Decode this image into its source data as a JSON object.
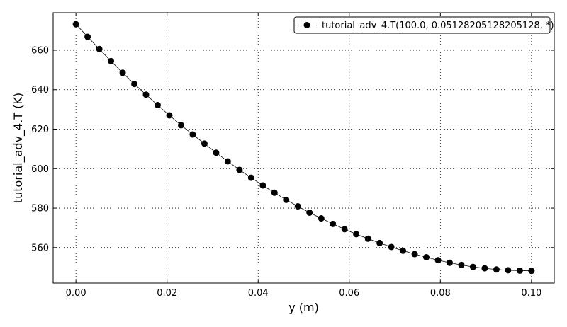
{
  "chart_data": {
    "type": "line",
    "xlabel": "y (m)",
    "ylabel": "tutorial_adv_4.T (K)",
    "xlim": [
      -0.005,
      0.105
    ],
    "ylim": [
      542,
      679
    ],
    "grid": true,
    "grid_style": "dotted",
    "legend_position": "top-right",
    "x_ticks": [
      0.0,
      0.02,
      0.04,
      0.06,
      0.08,
      0.1
    ],
    "x_tick_labels": [
      "0.00",
      "0.02",
      "0.04",
      "0.06",
      "0.08",
      "0.10"
    ],
    "y_ticks": [
      560,
      580,
      600,
      620,
      640,
      660
    ],
    "y_tick_labels": [
      "560",
      "580",
      "600",
      "620",
      "640",
      "660"
    ],
    "series": [
      {
        "name": "tutorial_adv_4.T(100.0, 0.05128205128205128, *)",
        "color": "#000000",
        "marker": "circle",
        "x": [
          0.0,
          0.00256,
          0.00513,
          0.00769,
          0.01026,
          0.01282,
          0.01538,
          0.01795,
          0.02051,
          0.02308,
          0.02564,
          0.02821,
          0.03077,
          0.03333,
          0.0359,
          0.03846,
          0.04103,
          0.04359,
          0.04615,
          0.04872,
          0.05128,
          0.05385,
          0.05641,
          0.05897,
          0.06154,
          0.0641,
          0.06667,
          0.06923,
          0.07179,
          0.07436,
          0.07692,
          0.07949,
          0.08205,
          0.08462,
          0.08718,
          0.08974,
          0.09231,
          0.09487,
          0.09744,
          0.1
        ],
        "y": [
          673.2,
          666.8,
          660.6,
          654.5,
          648.6,
          642.9,
          637.5,
          632.2,
          627.0,
          622.0,
          617.3,
          612.7,
          608.1,
          603.7,
          599.4,
          595.4,
          591.5,
          587.8,
          584.2,
          580.9,
          577.7,
          574.8,
          572.0,
          569.3,
          566.8,
          564.5,
          562.3,
          560.3,
          558.4,
          556.7,
          555.1,
          553.6,
          552.3,
          551.2,
          550.2,
          549.5,
          548.9,
          548.5,
          548.3,
          548.2
        ]
      }
    ]
  }
}
